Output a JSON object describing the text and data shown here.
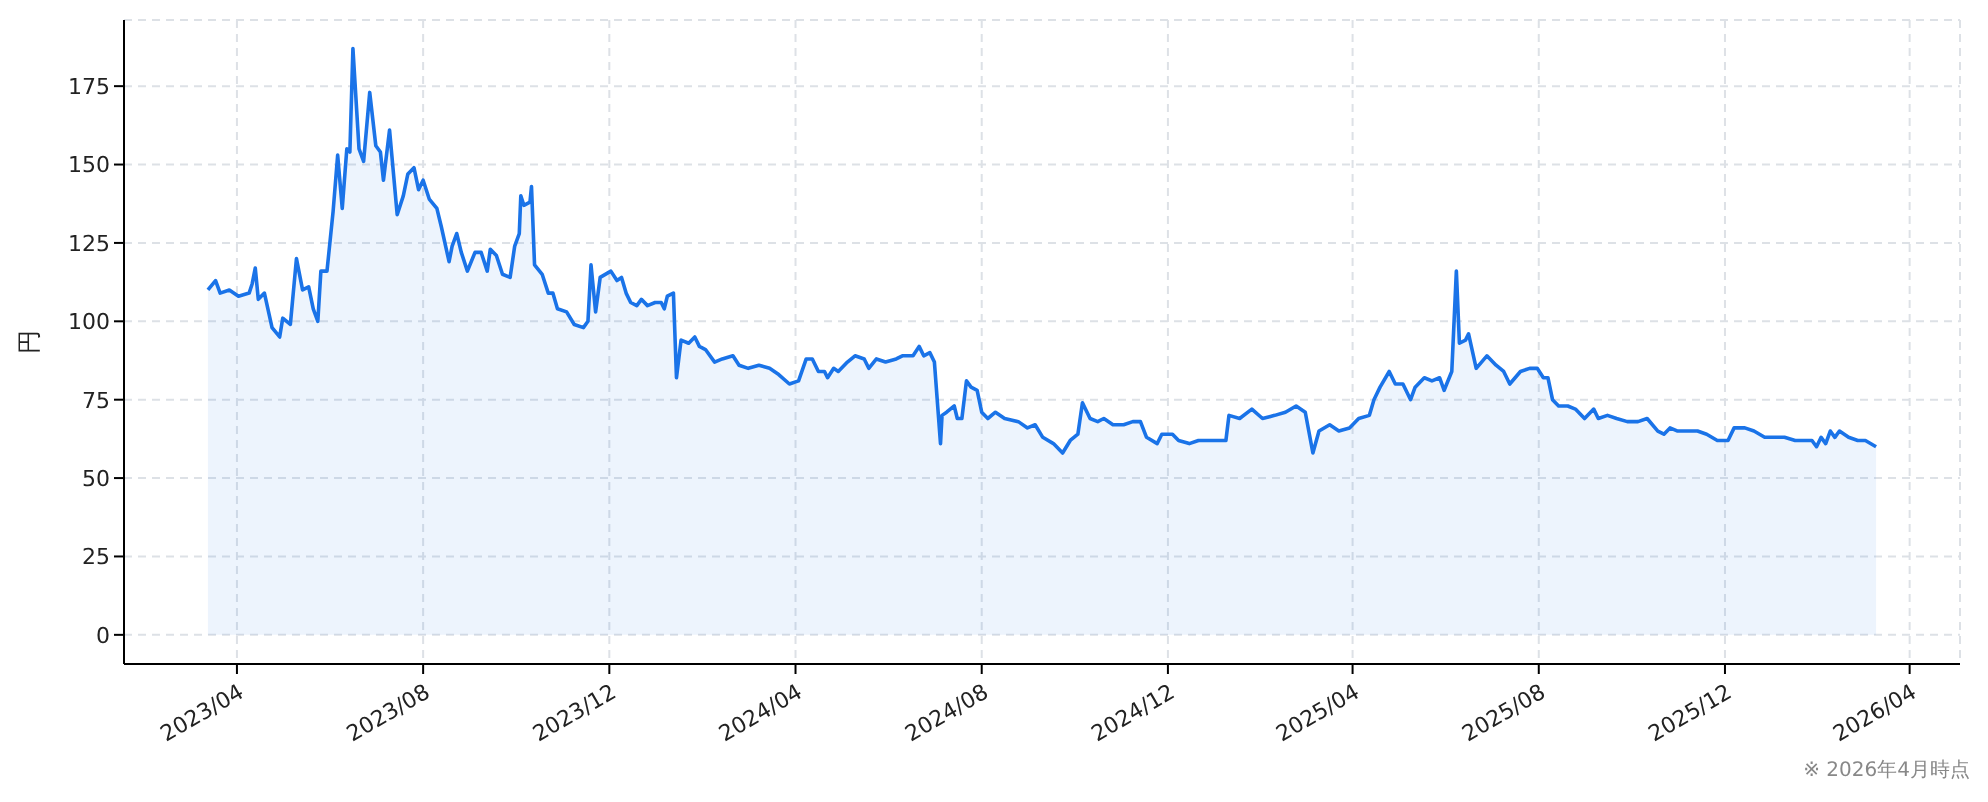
{
  "chart_data": {
    "type": "area",
    "ylabel": "円",
    "annotations": [
      "※ 2026年4月時点"
    ],
    "x": [
      "2023-03-13",
      "2023-03-18",
      "2023-03-21",
      "2023-03-27",
      "2023-04-02",
      "2023-04-09",
      "2023-04-11",
      "2023-04-13",
      "2023-04-15",
      "2023-04-19",
      "2023-04-24",
      "2023-04-29",
      "2023-05-01",
      "2023-05-06",
      "2023-05-10",
      "2023-05-14",
      "2023-05-18",
      "2023-05-21",
      "2023-05-24",
      "2023-05-26",
      "2023-05-30",
      "2023-06-03",
      "2023-06-06",
      "2023-06-09",
      "2023-06-12",
      "2023-06-14",
      "2023-06-16",
      "2023-06-20",
      "2023-06-23",
      "2023-06-27",
      "2023-07-01",
      "2023-07-04",
      "2023-07-06",
      "2023-07-10",
      "2023-07-15",
      "2023-07-19",
      "2023-07-22",
      "2023-07-26",
      "2023-07-29",
      "2023-08-01",
      "2023-08-05",
      "2023-08-10",
      "2023-08-13",
      "2023-08-18",
      "2023-08-20",
      "2023-08-23",
      "2023-08-26",
      "2023-08-30",
      "2023-09-04",
      "2023-09-08",
      "2023-09-12",
      "2023-09-14",
      "2023-09-18",
      "2023-09-22",
      "2023-09-27",
      "2023-09-30",
      "2023-10-03",
      "2023-10-04",
      "2023-10-06",
      "2023-10-10",
      "2023-10-11",
      "2023-10-13",
      "2023-10-18",
      "2023-10-22",
      "2023-10-25",
      "2023-10-28",
      "2023-11-03",
      "2023-11-08",
      "2023-11-14",
      "2023-11-17",
      "2023-11-19",
      "2023-11-22",
      "2023-11-25",
      "2023-12-02",
      "2023-12-06",
      "2023-12-09",
      "2023-12-12",
      "2023-12-15",
      "2023-12-19",
      "2023-12-22",
      "2023-12-26",
      "2023-12-31",
      "2024-01-04",
      "2024-01-06",
      "2024-01-08",
      "2024-01-12",
      "2024-01-14",
      "2024-01-17",
      "2024-01-22",
      "2024-01-26",
      "2024-01-29",
      "2024-02-02",
      "2024-02-08",
      "2024-02-13",
      "2024-02-20",
      "2024-02-24",
      "2024-03-01",
      "2024-03-08",
      "2024-03-15",
      "2024-03-21",
      "2024-03-28",
      "2024-04-03",
      "2024-04-08",
      "2024-04-12",
      "2024-04-16",
      "2024-04-20",
      "2024-04-22",
      "2024-04-26",
      "2024-04-29",
      "2024-05-05",
      "2024-05-10",
      "2024-05-16",
      "2024-05-19",
      "2024-05-24",
      "2024-05-30",
      "2024-06-06",
      "2024-06-10",
      "2024-06-17",
      "2024-06-21",
      "2024-06-24",
      "2024-06-28",
      "2024-07-01",
      "2024-07-05",
      "2024-07-06",
      "2024-07-09",
      "2024-07-14",
      "2024-07-16",
      "2024-07-19",
      "2024-07-22",
      "2024-07-25",
      "2024-07-29",
      "2024-08-01",
      "2024-08-05",
      "2024-08-10",
      "2024-08-16",
      "2024-08-25",
      "2024-08-31",
      "2024-09-05",
      "2024-09-10",
      "2024-09-17",
      "2024-09-23",
      "2024-09-28",
      "2024-10-03",
      "2024-10-06",
      "2024-10-11",
      "2024-10-16",
      "2024-10-20",
      "2024-10-26",
      "2024-11-02",
      "2024-11-08",
      "2024-11-13",
      "2024-11-17",
      "2024-11-24",
      "2024-11-27",
      "2024-12-04",
      "2024-12-08",
      "2024-12-15",
      "2024-12-21",
      "2024-12-30",
      "2025-01-08",
      "2025-01-10",
      "2025-01-17",
      "2025-01-25",
      "2025-02-01",
      "2025-02-09",
      "2025-02-16",
      "2025-02-23",
      "2025-03-01",
      "2025-03-06",
      "2025-03-10",
      "2025-03-17",
      "2025-03-23",
      "2025-03-30",
      "2025-04-05",
      "2025-04-12",
      "2025-04-15",
      "2025-04-19",
      "2025-04-25",
      "2025-04-29",
      "2025-05-04",
      "2025-05-09",
      "2025-05-12",
      "2025-05-18",
      "2025-05-23",
      "2025-05-28",
      "2025-05-31",
      "2025-06-05",
      "2025-06-08",
      "2025-06-10",
      "2025-06-14",
      "2025-06-16",
      "2025-06-21",
      "2025-06-28",
      "2025-07-04",
      "2025-07-09",
      "2025-07-13",
      "2025-07-20",
      "2025-07-26",
      "2025-07-31",
      "2025-08-04",
      "2025-08-07",
      "2025-08-10",
      "2025-08-14",
      "2025-08-20",
      "2025-08-25",
      "2025-08-31",
      "2025-09-06",
      "2025-09-09",
      "2025-09-15",
      "2025-09-21",
      "2025-09-28",
      "2025-10-05",
      "2025-10-11",
      "2025-10-18",
      "2025-10-22",
      "2025-10-26",
      "2025-10-31",
      "2025-11-06",
      "2025-11-13",
      "2025-11-19",
      "2025-11-26",
      "2025-12-03",
      "2025-12-07",
      "2025-12-14",
      "2025-12-20",
      "2025-12-27",
      "2026-01-03",
      "2026-01-09",
      "2026-01-16",
      "2026-01-22",
      "2026-01-27",
      "2026-01-30",
      "2026-02-02",
      "2026-02-05",
      "2026-02-08",
      "2026-02-11",
      "2026-02-14",
      "2026-02-20",
      "2026-02-26",
      "2026-03-03",
      "2026-03-10"
    ],
    "series": [
      {
        "color": "#1a73e8",
        "values": [
          110,
          113,
          109,
          110,
          108,
          109,
          112,
          117,
          107,
          109,
          98,
          95,
          101,
          99,
          120,
          110,
          111,
          104,
          100,
          116,
          116,
          135,
          153,
          136,
          155,
          154,
          187,
          155,
          151,
          173,
          156,
          154,
          145,
          161,
          134,
          140,
          147,
          149,
          142,
          145,
          139,
          136,
          130,
          119,
          124,
          128,
          122,
          116,
          122,
          122,
          116,
          123,
          121,
          115,
          114,
          124,
          128,
          140,
          137,
          138,
          143,
          118,
          115,
          109,
          109,
          104,
          103,
          99,
          98,
          100,
          118,
          103,
          114,
          116,
          113,
          114,
          109,
          106,
          105,
          107,
          105,
          106,
          106,
          104,
          108,
          109,
          82,
          94,
          93,
          95,
          92,
          91,
          87,
          88,
          89,
          86,
          85,
          86,
          85,
          83,
          80,
          81,
          88,
          88,
          84,
          84,
          82,
          85,
          84,
          87,
          89,
          88,
          85,
          88,
          87,
          88,
          89,
          89,
          92,
          89,
          90,
          87,
          61,
          70,
          71,
          73,
          69,
          69,
          81,
          79,
          78,
          71,
          69,
          71,
          69,
          68,
          66,
          67,
          63,
          61,
          58,
          62,
          64,
          74,
          69,
          68,
          69,
          67,
          67,
          68,
          68,
          63,
          61,
          64,
          64,
          62,
          61,
          62,
          62,
          62,
          70,
          69,
          72,
          69,
          70,
          71,
          73,
          71,
          58,
          65,
          67,
          65,
          66,
          69,
          70,
          75,
          79,
          84,
          80,
          80,
          75,
          79,
          82,
          81,
          82,
          78,
          84,
          116,
          93,
          94,
          96,
          85,
          89,
          86,
          84,
          80,
          84,
          85,
          85,
          82,
          82,
          75,
          73,
          73,
          72,
          69,
          72,
          69,
          70,
          69,
          68,
          68,
          69,
          65,
          64,
          66,
          65,
          65,
          65,
          64,
          62,
          62,
          66,
          66,
          65,
          63,
          63,
          63,
          62,
          62,
          62,
          60,
          63,
          61,
          65,
          63,
          65,
          63,
          62,
          62,
          60
        ]
      }
    ],
    "xlim": [
      "2023-01-17",
      "2026-05-04"
    ],
    "xticks": [
      {
        "value": "2023-04",
        "label": "2023/04"
      },
      {
        "value": "2023-08",
        "label": "2023/08"
      },
      {
        "value": "2023-12",
        "label": "2023/12"
      },
      {
        "value": "2024-04",
        "label": "2024/04"
      },
      {
        "value": "2024-08",
        "label": "2024/08"
      },
      {
        "value": "2024-12",
        "label": "2024/12"
      },
      {
        "value": "2025-04",
        "label": "2025/04"
      },
      {
        "value": "2025-08",
        "label": "2025/08"
      },
      {
        "value": "2025-12",
        "label": "2025/12"
      },
      {
        "value": "2026-04",
        "label": "2026/04"
      }
    ],
    "ylim": [
      -9.3,
      196.1
    ],
    "yticks": [
      0,
      25,
      50,
      75,
      100,
      125,
      150,
      175
    ],
    "grid": true
  }
}
